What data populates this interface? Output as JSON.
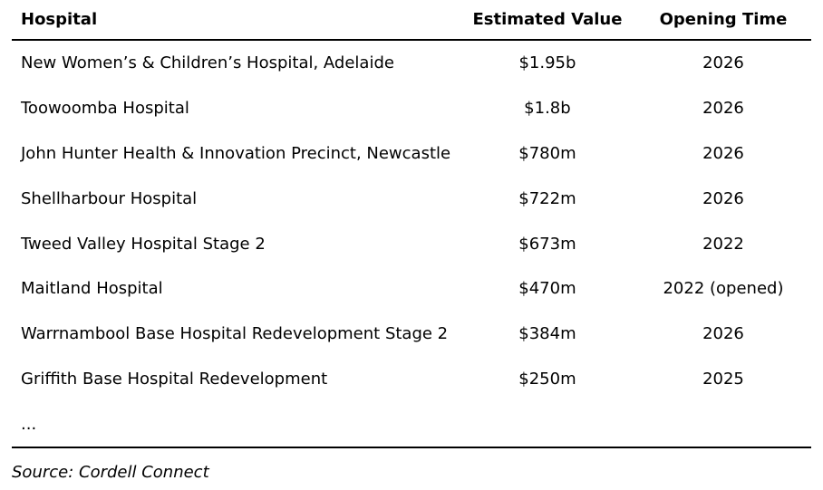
{
  "table": {
    "header": [
      "Hospital",
      "Estimated Value",
      "Opening Time"
    ],
    "rows": [
      [
        "New Women’s & Children’s Hospital, Adelaide",
        "$1.95b",
        "2026"
      ],
      [
        "Toowoomba Hospital",
        "$1.8b",
        "2026"
      ],
      [
        "John Hunter Health & Innovation Precinct, Newcastle",
        "$780m",
        "2026"
      ],
      [
        "Shellharbour Hospital",
        "$722m",
        "2026"
      ],
      [
        "Tweed Valley Hospital Stage 2",
        "$673m",
        "2022"
      ],
      [
        "Maitland Hospital",
        "$470m",
        "2022 (opened)"
      ],
      [
        "Warrnambool Base Hospital Redevelopment Stage 2",
        "$384m",
        "2026"
      ],
      [
        "Griffith Base Hospital Redevelopment",
        "$250m",
        "2025"
      ],
      [
        "...",
        "",
        ""
      ]
    ]
  },
  "source": "Source: Cordell Connect"
}
